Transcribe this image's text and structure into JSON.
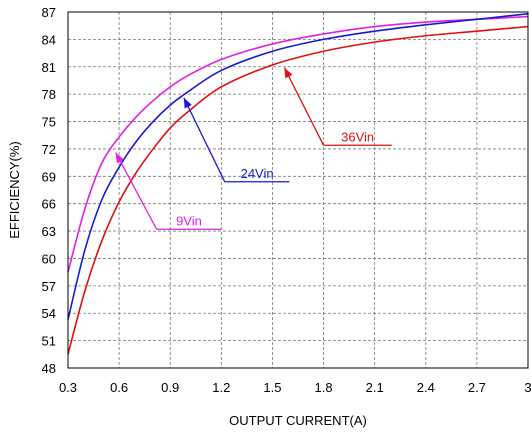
{
  "chart_data": {
    "type": "line",
    "title": "",
    "xlabel": "OUTPUT CURRENT(A)",
    "ylabel": "EFFICIENCY(%)",
    "xlim": [
      0.3,
      3
    ],
    "ylim": [
      48,
      87
    ],
    "xticks": [
      "0.3",
      "0.6",
      "0.9",
      "1.2",
      "1.5",
      "1.8",
      "2.1",
      "2.4",
      "2.7",
      "3"
    ],
    "yticks": [
      "48",
      "51",
      "54",
      "57",
      "60",
      "63",
      "66",
      "69",
      "72",
      "75",
      "78",
      "81",
      "84",
      "87"
    ],
    "grid": true,
    "series": [
      {
        "name": "9Vin",
        "color": "#e020e0",
        "x": [
          0.3,
          0.4,
          0.5,
          0.6,
          0.7,
          0.8,
          0.9,
          1.0,
          1.2,
          1.5,
          1.8,
          2.1,
          2.4,
          2.7,
          3.0
        ],
        "y": [
          58.5,
          65.5,
          70.5,
          73.3,
          75.5,
          77.3,
          78.8,
          80.0,
          81.8,
          83.5,
          84.6,
          85.4,
          85.9,
          86.2,
          86.5
        ]
      },
      {
        "name": "24Vin",
        "color": "#1a1acc",
        "x": [
          0.3,
          0.4,
          0.5,
          0.6,
          0.7,
          0.8,
          0.9,
          1.0,
          1.2,
          1.5,
          1.8,
          2.1,
          2.4,
          2.7,
          3.0
        ],
        "y": [
          53.3,
          61.0,
          66.5,
          70.0,
          72.8,
          75.0,
          76.8,
          78.2,
          80.6,
          82.7,
          84.0,
          84.9,
          85.6,
          86.2,
          86.8
        ]
      },
      {
        "name": "36Vin",
        "color": "#dd1111",
        "x": [
          0.3,
          0.4,
          0.5,
          0.6,
          0.7,
          0.8,
          0.9,
          1.0,
          1.2,
          1.5,
          1.8,
          2.1,
          2.4,
          2.7,
          3.0
        ],
        "y": [
          49.5,
          56.5,
          62.0,
          66.2,
          69.4,
          72.0,
          74.3,
          76.0,
          78.8,
          81.2,
          82.7,
          83.7,
          84.4,
          84.9,
          85.4
        ]
      }
    ],
    "annotations": [
      {
        "text": "9Vin",
        "series": "9Vin",
        "arrow_to": [
          0.58,
          71.6
        ],
        "label_at": [
          0.82,
          63.2
        ],
        "label_end_x": 1.2
      },
      {
        "text": "24Vin",
        "series": "24Vin",
        "arrow_to": [
          0.98,
          77.6
        ],
        "label_at": [
          1.22,
          68.4
        ],
        "label_end_x": 1.6
      },
      {
        "text": "36Vin",
        "series": "36Vin",
        "arrow_to": [
          1.57,
          80.9
        ],
        "label_at": [
          1.8,
          72.4
        ],
        "label_end_x": 2.2
      }
    ]
  }
}
